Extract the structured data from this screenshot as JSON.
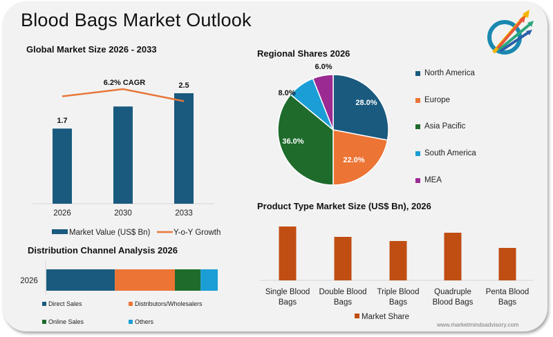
{
  "title": "Blood Bags Market Outlook",
  "website": "www.marketmindsadvisory.com",
  "logo": {
    "icon": "rising-arrows-logo-icon"
  },
  "colors": {
    "navy": "#1a5a7e",
    "orange": "#ec7434",
    "green": "#1e6b2c",
    "sky": "#1b9ed6",
    "purple": "#9b2a93",
    "rust": "#c04e13",
    "line": "#e8773a"
  },
  "chart_data": [
    {
      "id": "global_market_size",
      "type": "bar",
      "title": "Global Market Size 2026 - 2033",
      "categories": [
        "2026",
        "2030",
        "2033"
      ],
      "series": [
        {
          "name": "Market Value (US$ Bn)",
          "type": "bar",
          "values": [
            1.7,
            2.2,
            2.5
          ],
          "data_labels": [
            "1.7",
            "",
            "2.5"
          ]
        },
        {
          "name": "Y-o-Y Growth",
          "type": "line",
          "values": [
            5.9,
            6.2,
            5.7
          ]
        }
      ],
      "annotation": "6.2% CAGR",
      "ylim": [
        0,
        2.8
      ],
      "legend": [
        "Market Value (US$ Bn)",
        "Y-o-Y Growth"
      ],
      "legend_position": "bottom"
    },
    {
      "id": "regional_shares",
      "type": "pie",
      "title": "Regional Shares 2026",
      "labels": [
        "North America",
        "Europe",
        "Asia Pacific",
        "South America",
        "MEA"
      ],
      "values": [
        28.0,
        22.0,
        36.0,
        8.0,
        6.0
      ],
      "data_labels": [
        "28.0%",
        "22.0%",
        "36.0%",
        "8.0%",
        "6.0%"
      ],
      "legend_position": "right"
    },
    {
      "id": "distribution_channel",
      "type": "bar",
      "orientation": "horizontal-stacked",
      "title": "Distribution Channel Analysis 2026",
      "categories": [
        "2026"
      ],
      "series": [
        {
          "name": "Direct Sales",
          "values": [
            40
          ]
        },
        {
          "name": "Distributors/Wholesalers",
          "values": [
            35
          ]
        },
        {
          "name": "Online Sales",
          "values": [
            15
          ]
        },
        {
          "name": "Others",
          "values": [
            10
          ]
        }
      ],
      "legend_position": "bottom"
    },
    {
      "id": "product_type",
      "type": "bar",
      "title": "Product Type Market Size (US$ Bn), 2026",
      "categories": [
        "Single Blood Bags",
        "Double Blood Bags",
        "Triple Blood Bags",
        "Quadruple Blood Bags",
        "Penta Blood Bags"
      ],
      "category_lines": [
        [
          "Single Blood",
          "Bags"
        ],
        [
          "Double Blood",
          "Bags"
        ],
        [
          "Triple Blood",
          "Bags"
        ],
        [
          "Quadruple",
          "Blood Bags"
        ],
        [
          "Penta Blood",
          "Bags"
        ]
      ],
      "series": [
        {
          "name": "Market Share",
          "values": [
            0.39,
            0.315,
            0.285,
            0.345,
            0.235
          ]
        }
      ],
      "ylim": [
        0,
        0.45
      ],
      "legend_position": "bottom"
    }
  ]
}
